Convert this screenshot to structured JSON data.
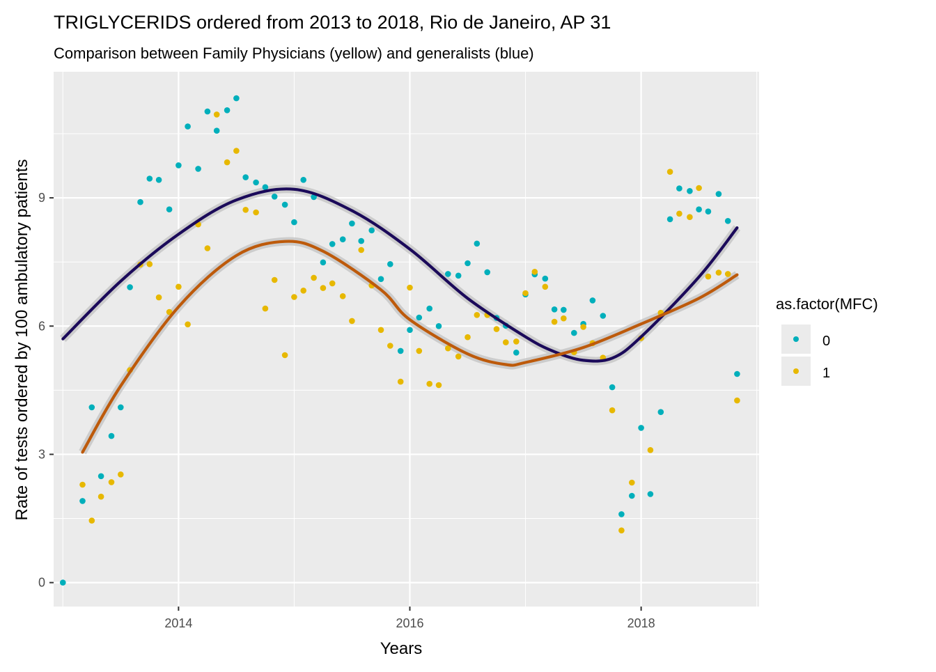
{
  "chart_data": {
    "type": "scatter",
    "title": "TRIGLYCERIDS ordered from 2013 to 2018, Rio de Janeiro, AP 31",
    "subtitle": "Comparison between Family Physicians (yellow) and generalists (blue)",
    "xlabel": "Years",
    "ylabel": "Rate of tests ordered by 100 ambulatory patients",
    "xlim": [
      2012.92,
      2019.02
    ],
    "ylim": [
      -0.56,
      11.95
    ],
    "xticks": [
      2014,
      2016,
      2018
    ],
    "xtick_labels": [
      "2014",
      "2016",
      "2018"
    ],
    "yticks": [
      0,
      3,
      6,
      9
    ],
    "ytick_labels": [
      "0",
      "3",
      "6",
      "9"
    ],
    "grid": true,
    "panel_background": "#ebebeb",
    "legend": {
      "title": "as.factor(MFC)",
      "position": "right",
      "labels": [
        "0",
        "1"
      ]
    },
    "series": [
      {
        "name": "0",
        "color": "#00AFBB",
        "x": [
          2013.0,
          2013.17,
          2013.25,
          2013.33,
          2013.42,
          2013.5,
          2013.58,
          2013.67,
          2013.75,
          2013.83,
          2013.92,
          2014.0,
          2014.08,
          2014.17,
          2014.25,
          2014.33,
          2014.42,
          2014.5,
          2014.58,
          2014.67,
          2014.75,
          2014.83,
          2014.92,
          2015.0,
          2015.08,
          2015.17,
          2015.25,
          2015.33,
          2015.42,
          2015.5,
          2015.58,
          2015.67,
          2015.75,
          2015.83,
          2015.92,
          2016.0,
          2016.08,
          2016.17,
          2016.25,
          2016.33,
          2016.42,
          2016.5,
          2016.58,
          2016.67,
          2016.75,
          2016.83,
          2016.92,
          2017.0,
          2017.08,
          2017.17,
          2017.25,
          2017.33,
          2017.42,
          2017.5,
          2017.58,
          2017.67,
          2017.75,
          2017.83,
          2017.92,
          2018.0,
          2018.08,
          2018.17,
          2018.25,
          2018.33,
          2018.42,
          2018.5,
          2018.58,
          2018.67,
          2018.75,
          2018.83
        ],
        "y": [
          0.0,
          1.91,
          4.1,
          2.49,
          3.43,
          4.1,
          6.91,
          8.9,
          9.45,
          9.42,
          8.73,
          9.76,
          10.67,
          9.68,
          11.02,
          10.57,
          11.05,
          11.33,
          9.48,
          9.36,
          9.25,
          9.03,
          8.84,
          8.43,
          9.42,
          9.02,
          7.49,
          7.92,
          8.03,
          8.4,
          7.99,
          8.24,
          7.1,
          7.45,
          5.42,
          5.91,
          6.2,
          6.41,
          6.0,
          7.22,
          7.18,
          7.47,
          7.93,
          7.26,
          6.19,
          6.01,
          5.38,
          6.74,
          7.21,
          7.11,
          6.39,
          6.38,
          5.84,
          6.05,
          6.6,
          6.24,
          4.57,
          1.6,
          2.03,
          3.62,
          2.07,
          3.99,
          8.5,
          9.22,
          9.16,
          8.73,
          8.68,
          9.09,
          8.46,
          4.88
        ]
      },
      {
        "name": "1",
        "color": "#E7B800",
        "x": [
          2013.17,
          2013.25,
          2013.33,
          2013.42,
          2013.5,
          2013.58,
          2013.67,
          2013.75,
          2013.83,
          2013.92,
          2014.0,
          2014.08,
          2014.17,
          2014.25,
          2014.33,
          2014.42,
          2014.5,
          2014.58,
          2014.67,
          2014.75,
          2014.83,
          2014.92,
          2015.0,
          2015.08,
          2015.17,
          2015.25,
          2015.33,
          2015.42,
          2015.5,
          2015.58,
          2015.67,
          2015.75,
          2015.83,
          2015.92,
          2016.0,
          2016.08,
          2016.17,
          2016.25,
          2016.33,
          2016.42,
          2016.5,
          2016.58,
          2016.67,
          2016.75,
          2016.83,
          2016.92,
          2017.0,
          2017.08,
          2017.17,
          2017.25,
          2017.33,
          2017.42,
          2017.5,
          2017.58,
          2017.67,
          2017.75,
          2017.83,
          2017.92,
          2018.0,
          2018.08,
          2018.17,
          2018.25,
          2018.33,
          2018.42,
          2018.5,
          2018.58,
          2018.67,
          2018.75,
          2018.83
        ],
        "y": [
          2.29,
          1.45,
          2.01,
          2.35,
          2.53,
          4.97,
          7.44,
          7.45,
          6.67,
          6.33,
          6.92,
          6.04,
          8.38,
          7.82,
          10.95,
          9.83,
          10.1,
          8.72,
          8.66,
          6.41,
          7.08,
          5.32,
          6.68,
          6.83,
          7.13,
          6.89,
          7.0,
          6.7,
          6.12,
          7.78,
          6.95,
          5.91,
          5.54,
          4.7,
          6.9,
          5.42,
          4.65,
          4.62,
          5.48,
          5.29,
          5.74,
          6.26,
          6.26,
          5.93,
          5.62,
          5.64,
          6.77,
          7.27,
          6.92,
          6.1,
          6.18,
          5.39,
          5.98,
          5.6,
          5.26,
          4.03,
          1.22,
          2.34,
          5.72,
          3.1,
          6.31,
          9.61,
          8.63,
          8.55,
          9.23,
          7.16,
          7.25,
          7.22,
          4.26
        ]
      }
    ],
    "smooth": [
      {
        "series": "0",
        "color": "#1b0a5a",
        "x": [
          2013.0,
          2013.5,
          2014.0,
          2014.5,
          2015.0,
          2015.5,
          2016.0,
          2016.5,
          2017.0,
          2017.25,
          2017.5,
          2017.75,
          2018.0,
          2018.5,
          2018.83
        ],
        "y": [
          5.7,
          7.05,
          8.15,
          8.95,
          9.2,
          8.7,
          7.8,
          6.65,
          5.75,
          5.4,
          5.2,
          5.25,
          5.75,
          7.15,
          8.3
        ]
      },
      {
        "series": "1",
        "color": "#bd5a0b",
        "x": [
          2013.17,
          2013.5,
          2014.0,
          2014.5,
          2014.92,
          2015.25,
          2015.75,
          2016.0,
          2016.5,
          2016.83,
          2017.0,
          2017.5,
          2018.0,
          2018.5,
          2018.83
        ],
        "y": [
          3.05,
          4.6,
          6.45,
          7.65,
          7.98,
          7.75,
          6.85,
          6.15,
          5.35,
          5.1,
          5.15,
          5.5,
          6.05,
          6.65,
          7.2
        ]
      }
    ]
  }
}
